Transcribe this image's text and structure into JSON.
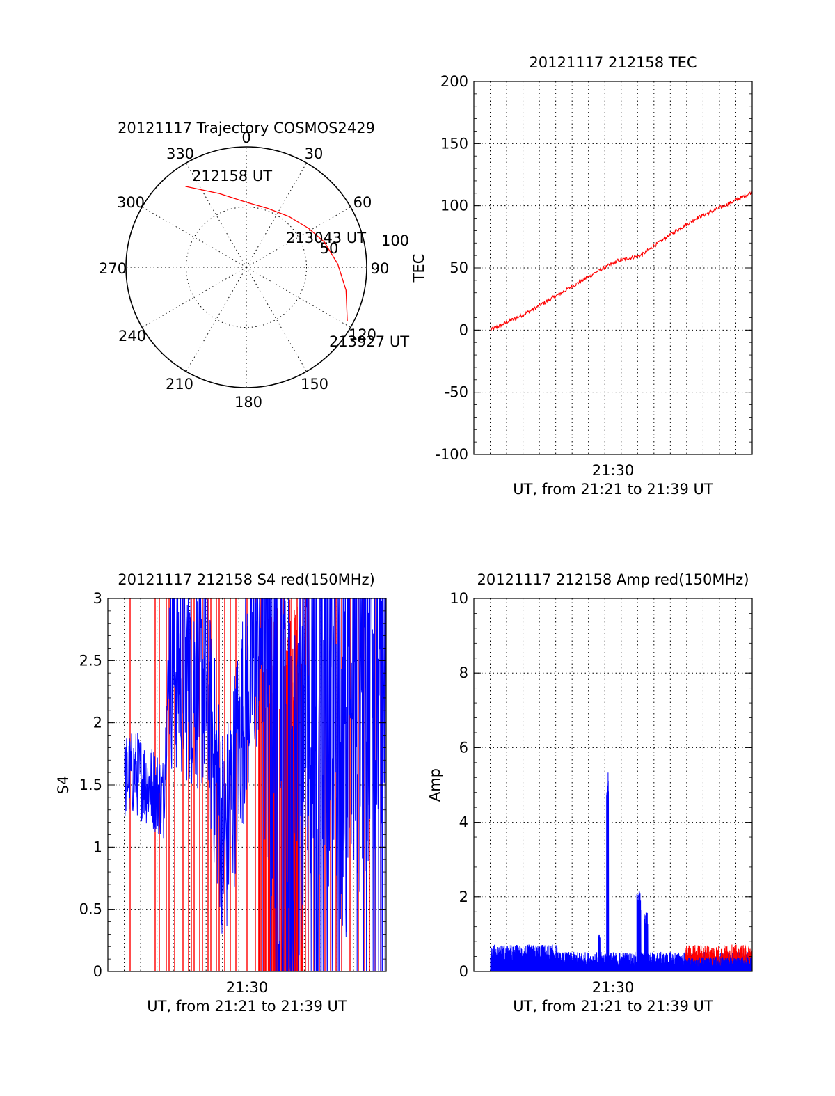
{
  "chart_data": [
    {
      "type": "polar-trajectory",
      "title": "20121117 Trajectory COSMOS2429",
      "azimuth_labels": [
        "0",
        "30",
        "60",
        "90",
        "120",
        "150",
        "180",
        "210",
        "240",
        "270",
        "300",
        "330"
      ],
      "radial_labels": [
        "50",
        "100"
      ],
      "track": {
        "color": "#ff0000",
        "points": [
          {
            "az": 323,
            "zen": 84
          },
          {
            "az": 340,
            "zen": 65
          },
          {
            "az": 0,
            "zen": 54
          },
          {
            "az": 20,
            "zen": 52
          },
          {
            "az": 40,
            "zen": 55
          },
          {
            "az": 58,
            "zen": 61
          },
          {
            "az": 72,
            "zen": 68
          },
          {
            "az": 88,
            "zen": 76
          },
          {
            "az": 103,
            "zen": 85
          },
          {
            "az": 118,
            "zen": 95
          }
        ]
      },
      "annotations": [
        {
          "text": "212158 UT",
          "az": 323,
          "zen": 84
        },
        {
          "text": "213043 UT",
          "az": 58,
          "zen": 61
        },
        {
          "text": "213927 UT",
          "az": 118,
          "zen": 95
        }
      ]
    },
    {
      "type": "line",
      "title": "20121117 212158 TEC",
      "ylabel": "TEC",
      "xlabel": "UT, from 21:21 to 21:39 UT",
      "xtick_labels": [
        {
          "t": 0.5,
          "label": "21:30"
        }
      ],
      "ylim": [
        -100,
        200
      ],
      "yticks": [
        -100,
        -50,
        0,
        50,
        100,
        150,
        200
      ],
      "x_range": [
        0,
        1
      ],
      "series": [
        {
          "color": "#ff0000",
          "t_start": 0.06,
          "t_end": 1.0,
          "anchors": [
            [
              0.06,
              0
            ],
            [
              0.2,
              15
            ],
            [
              0.33,
              32
            ],
            [
              0.45,
              48
            ],
            [
              0.52,
              56
            ],
            [
              0.6,
              60
            ],
            [
              0.7,
              76
            ],
            [
              0.8,
              90
            ],
            [
              0.9,
              100
            ],
            [
              1.0,
              111
            ]
          ],
          "noise": 1.5
        }
      ]
    },
    {
      "type": "line",
      "title": "20121117 212158 S4 red(150MHz)",
      "ylabel": "S4",
      "xlabel": "UT, from 21:21 to 21:39 UT",
      "xtick_labels": [
        {
          "t": 0.5,
          "label": "21:30"
        }
      ],
      "ylim": [
        0,
        3
      ],
      "yticks": [
        0,
        0.5,
        1,
        1.5,
        2,
        2.5,
        3
      ],
      "tick_labels_y": [
        "0",
        "0.5",
        "1",
        "1.5",
        "2",
        "2.5",
        "3"
      ],
      "series": [
        {
          "color": "#ff0000",
          "kind": "spikes"
        },
        {
          "color": "#0000ff",
          "kind": "noisy",
          "anchors": [
            [
              0.0,
              1.5
            ],
            [
              0.1,
              1.6
            ],
            [
              0.2,
              1.4
            ],
            [
              0.22,
              2.5
            ],
            [
              0.35,
              2.3
            ],
            [
              0.42,
              1.0
            ],
            [
              0.48,
              2.0
            ],
            [
              0.55,
              2.8
            ],
            [
              0.65,
              1.2
            ],
            [
              0.75,
              2.4
            ],
            [
              0.85,
              1.8
            ],
            [
              0.95,
              2.5
            ],
            [
              1.0,
              2.8
            ]
          ]
        }
      ]
    },
    {
      "type": "line",
      "title": "20121117 212158 Amp red(150MHz)",
      "ylabel": "Amp",
      "xlabel": "UT, from 21:21 to 21:39 UT",
      "xtick_labels": [
        {
          "t": 0.5,
          "label": "21:30"
        }
      ],
      "ylim": [
        0,
        10
      ],
      "yticks": [
        0,
        2,
        4,
        6,
        8,
        10
      ],
      "series": [
        {
          "color": "#ff0000",
          "kind": "band",
          "t_start": 0.76,
          "t_end": 1.0,
          "level": 0.45
        },
        {
          "color": "#0000ff",
          "kind": "band",
          "t_start": 0.06,
          "t_end": 1.0,
          "level": 0.35,
          "spikes": [
            {
              "t": 0.48,
              "v": 5.5
            },
            {
              "t": 0.59,
              "v": 2.7
            },
            {
              "t": 0.62,
              "v": 1.8
            },
            {
              "t": 0.45,
              "v": 1.0
            }
          ]
        }
      ]
    }
  ]
}
